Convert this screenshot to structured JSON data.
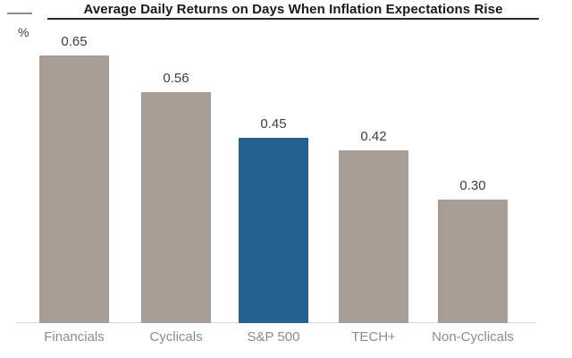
{
  "header": {
    "title": "Average Daily Returns on Days When Inflation Expectations Rise",
    "unit_label": "%"
  },
  "chart_data": {
    "type": "bar",
    "title": "Average Daily Returns on Days When Inflation Expectations Rise",
    "categories": [
      "Financials",
      "Cyclicals",
      "S&P 500",
      "TECH+",
      "Non-Cyclicals"
    ],
    "values": [
      0.65,
      0.56,
      0.45,
      0.42,
      0.3
    ],
    "value_labels": [
      "0.65",
      "0.56",
      "0.45",
      "0.42",
      "0.30"
    ],
    "xlabel": "",
    "ylabel": "%",
    "ylim": [
      0,
      0.72
    ],
    "grid": false,
    "legend": "none",
    "bar_colors": [
      "#a59d96",
      "#a59d96",
      "#25618f",
      "#a59d96",
      "#a59d96"
    ],
    "highlight_category": "S&P 500"
  },
  "colors": {
    "bar_gray": "#a59d96",
    "bar_blue": "#25618f",
    "axis_line": "#d9d9d9",
    "title_text": "#1a1a1a",
    "title_underline": "#2b2b2b",
    "corner_tick": "#8c8c8c",
    "value_label": "#404040",
    "category_label": "#8c8c8c"
  }
}
